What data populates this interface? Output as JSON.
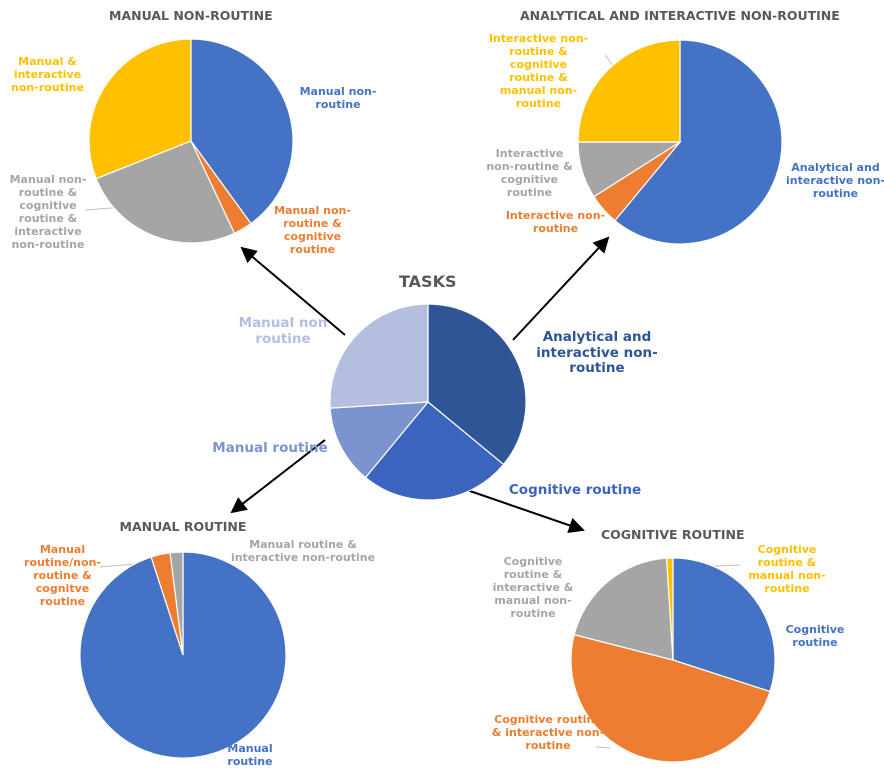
{
  "chart_data": [
    {
      "type": "pie",
      "title": "TASKS",
      "categories": [
        "Analytical and interactive non-routine",
        "Cognitive routine",
        "Manual routine",
        "Manual non routine"
      ],
      "values": [
        36,
        25,
        13,
        26
      ],
      "colors": [
        "#2f5597",
        "#3a64bd",
        "#7b93cf",
        "#b4bfdf"
      ]
    },
    {
      "type": "pie",
      "title": "MANUAL NON-ROUTINE",
      "categories": [
        "Manual non-routine",
        "Manual non-routine & cognitive routine",
        "Manual non-routine & cognitive routine & interactive non-routine",
        "Manual & interactive non-routine"
      ],
      "values": [
        40,
        3,
        26,
        31
      ],
      "colors": [
        "#4472c4",
        "#ed7d31",
        "#a5a5a5",
        "#ffc000"
      ]
    },
    {
      "type": "pie",
      "title": "ANALYTICAL AND INTERACTIVE NON-ROUTINE",
      "categories": [
        "Analytical and interactive non-routine",
        "Interactive non-routine",
        "Interactive non-routine & cognitive routine",
        "Interactive non-routine & cognitive routine & manual non-routine"
      ],
      "values": [
        61,
        5,
        9,
        25
      ],
      "colors": [
        "#4472c4",
        "#ed7d31",
        "#a5a5a5",
        "#ffc000"
      ]
    },
    {
      "type": "pie",
      "title": "MANUAL ROUTINE",
      "categories": [
        "Manual routine",
        "Manual routine/non-routine & cognitve routine",
        "Manual routine & interactive non-routine"
      ],
      "values": [
        95,
        3,
        2
      ],
      "colors": [
        "#4472c4",
        "#ed7d31",
        "#a5a5a5"
      ]
    },
    {
      "type": "pie",
      "title": "COGNITIVE ROUTINE",
      "categories": [
        "Cognitive routine",
        "Cognitive routine & interactive non-routine",
        "Cognitive routine & interactive & manual non-routine",
        "Cognitive routine & manual non-routine"
      ],
      "values": [
        30,
        49,
        20,
        1
      ],
      "colors": [
        "#4472c4",
        "#ed7d31",
        "#a5a5a5",
        "#ffc000"
      ]
    }
  ]
}
